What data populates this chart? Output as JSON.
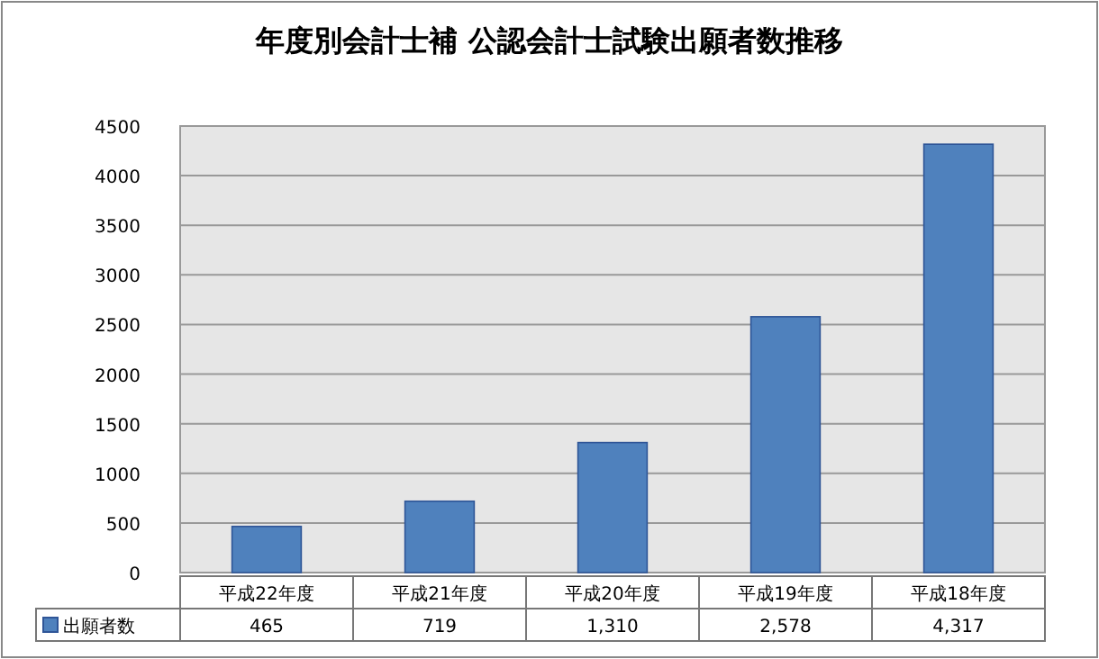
{
  "chart_data": {
    "type": "bar",
    "title": "年度別会計士補  公認会計士試験出願者数推移",
    "categories": [
      "平成22年度",
      "平成21年度",
      "平成20年度",
      "平成19年度",
      "平成18年度"
    ],
    "series": [
      {
        "name": "出願者数",
        "color": "#4f81bd",
        "values": [
          465,
          719,
          1310,
          2578,
          4317
        ],
        "value_labels": [
          "465",
          "719",
          "1,310",
          "2,578",
          "4,317"
        ]
      }
    ],
    "ylim": [
      0,
      4500
    ],
    "yticks": [
      0,
      500,
      1000,
      1500,
      2000,
      2500,
      3000,
      3500,
      4000,
      4500
    ],
    "grid": "y",
    "legend": "bottom left"
  }
}
